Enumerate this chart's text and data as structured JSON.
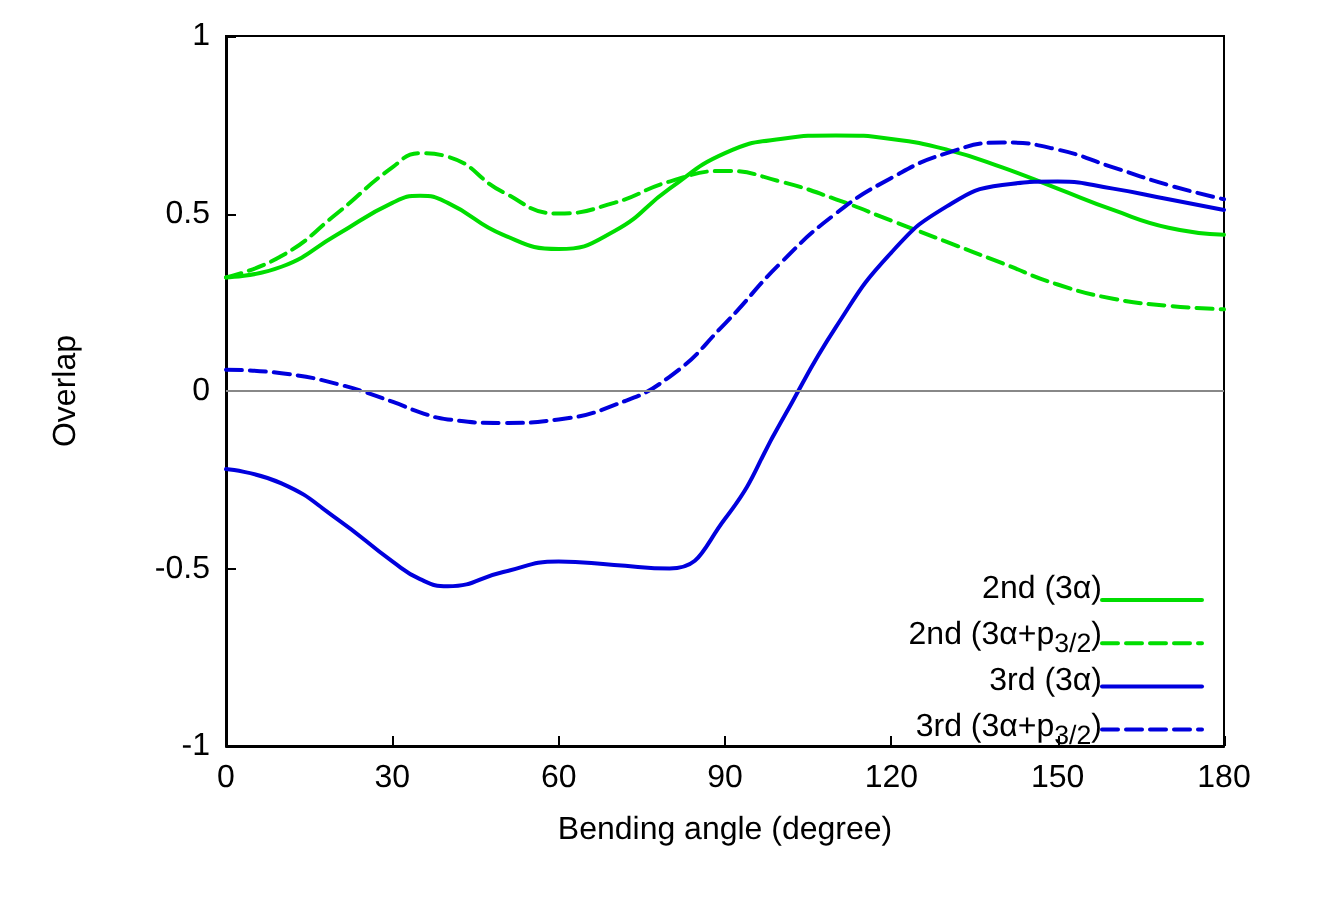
{
  "chart_data": {
    "type": "line",
    "xlabel": "Bending angle (degree)",
    "ylabel": "Overlap",
    "xlim": [
      0,
      180
    ],
    "xticks": [
      0,
      30,
      60,
      90,
      120,
      150,
      180
    ],
    "ylim": [
      -1,
      1
    ],
    "yticks": [
      -1,
      -0.5,
      0,
      0.5,
      1
    ],
    "grid": false,
    "legend": "bottom right",
    "marker": "none",
    "x": [
      0,
      10,
      20,
      30,
      35,
      40,
      50,
      60,
      70,
      80,
      90,
      100,
      110,
      120,
      130,
      140,
      150,
      160,
      170,
      180
    ],
    "series": [
      {
        "name": "2nd (3α)",
        "color": "#00dd00",
        "line_style": "solid",
        "values": [
          0.32,
          0.35,
          0.44,
          0.53,
          0.55,
          0.53,
          0.44,
          0.4,
          0.45,
          0.57,
          0.67,
          0.71,
          0.72,
          0.71,
          0.68,
          0.63,
          0.57,
          0.51,
          0.46,
          0.44
        ]
      },
      {
        "name": "2nd (3α+p$_{3/2}$)",
        "color": "#00dd00",
        "line_style": "dashed",
        "values": [
          0.32,
          0.38,
          0.5,
          0.63,
          0.67,
          0.66,
          0.56,
          0.5,
          0.53,
          0.59,
          0.62,
          0.59,
          0.54,
          0.48,
          0.42,
          0.36,
          0.3,
          0.26,
          0.24,
          0.23
        ]
      },
      {
        "name": "3rd (3α)",
        "color": "#0000dd",
        "line_style": "solid",
        "values": [
          -0.22,
          -0.26,
          -0.36,
          -0.48,
          -0.53,
          -0.55,
          -0.51,
          -0.48,
          -0.49,
          -0.5,
          -0.36,
          -0.09,
          0.18,
          0.39,
          0.52,
          0.58,
          0.59,
          0.57,
          0.54,
          0.51
        ]
      },
      {
        "name": "3rd (3α+p$_{3/2}$)",
        "color": "#0000dd",
        "line_style": "dashed",
        "values": [
          0.06,
          0.05,
          0.02,
          -0.03,
          -0.06,
          -0.08,
          -0.09,
          -0.08,
          -0.04,
          0.04,
          0.19,
          0.36,
          0.5,
          0.6,
          0.67,
          0.7,
          0.68,
          0.63,
          0.58,
          0.54
        ]
      }
    ],
    "ref_lines": [
      {
        "axis": "y",
        "value": 0,
        "color": "#888888"
      }
    ]
  }
}
